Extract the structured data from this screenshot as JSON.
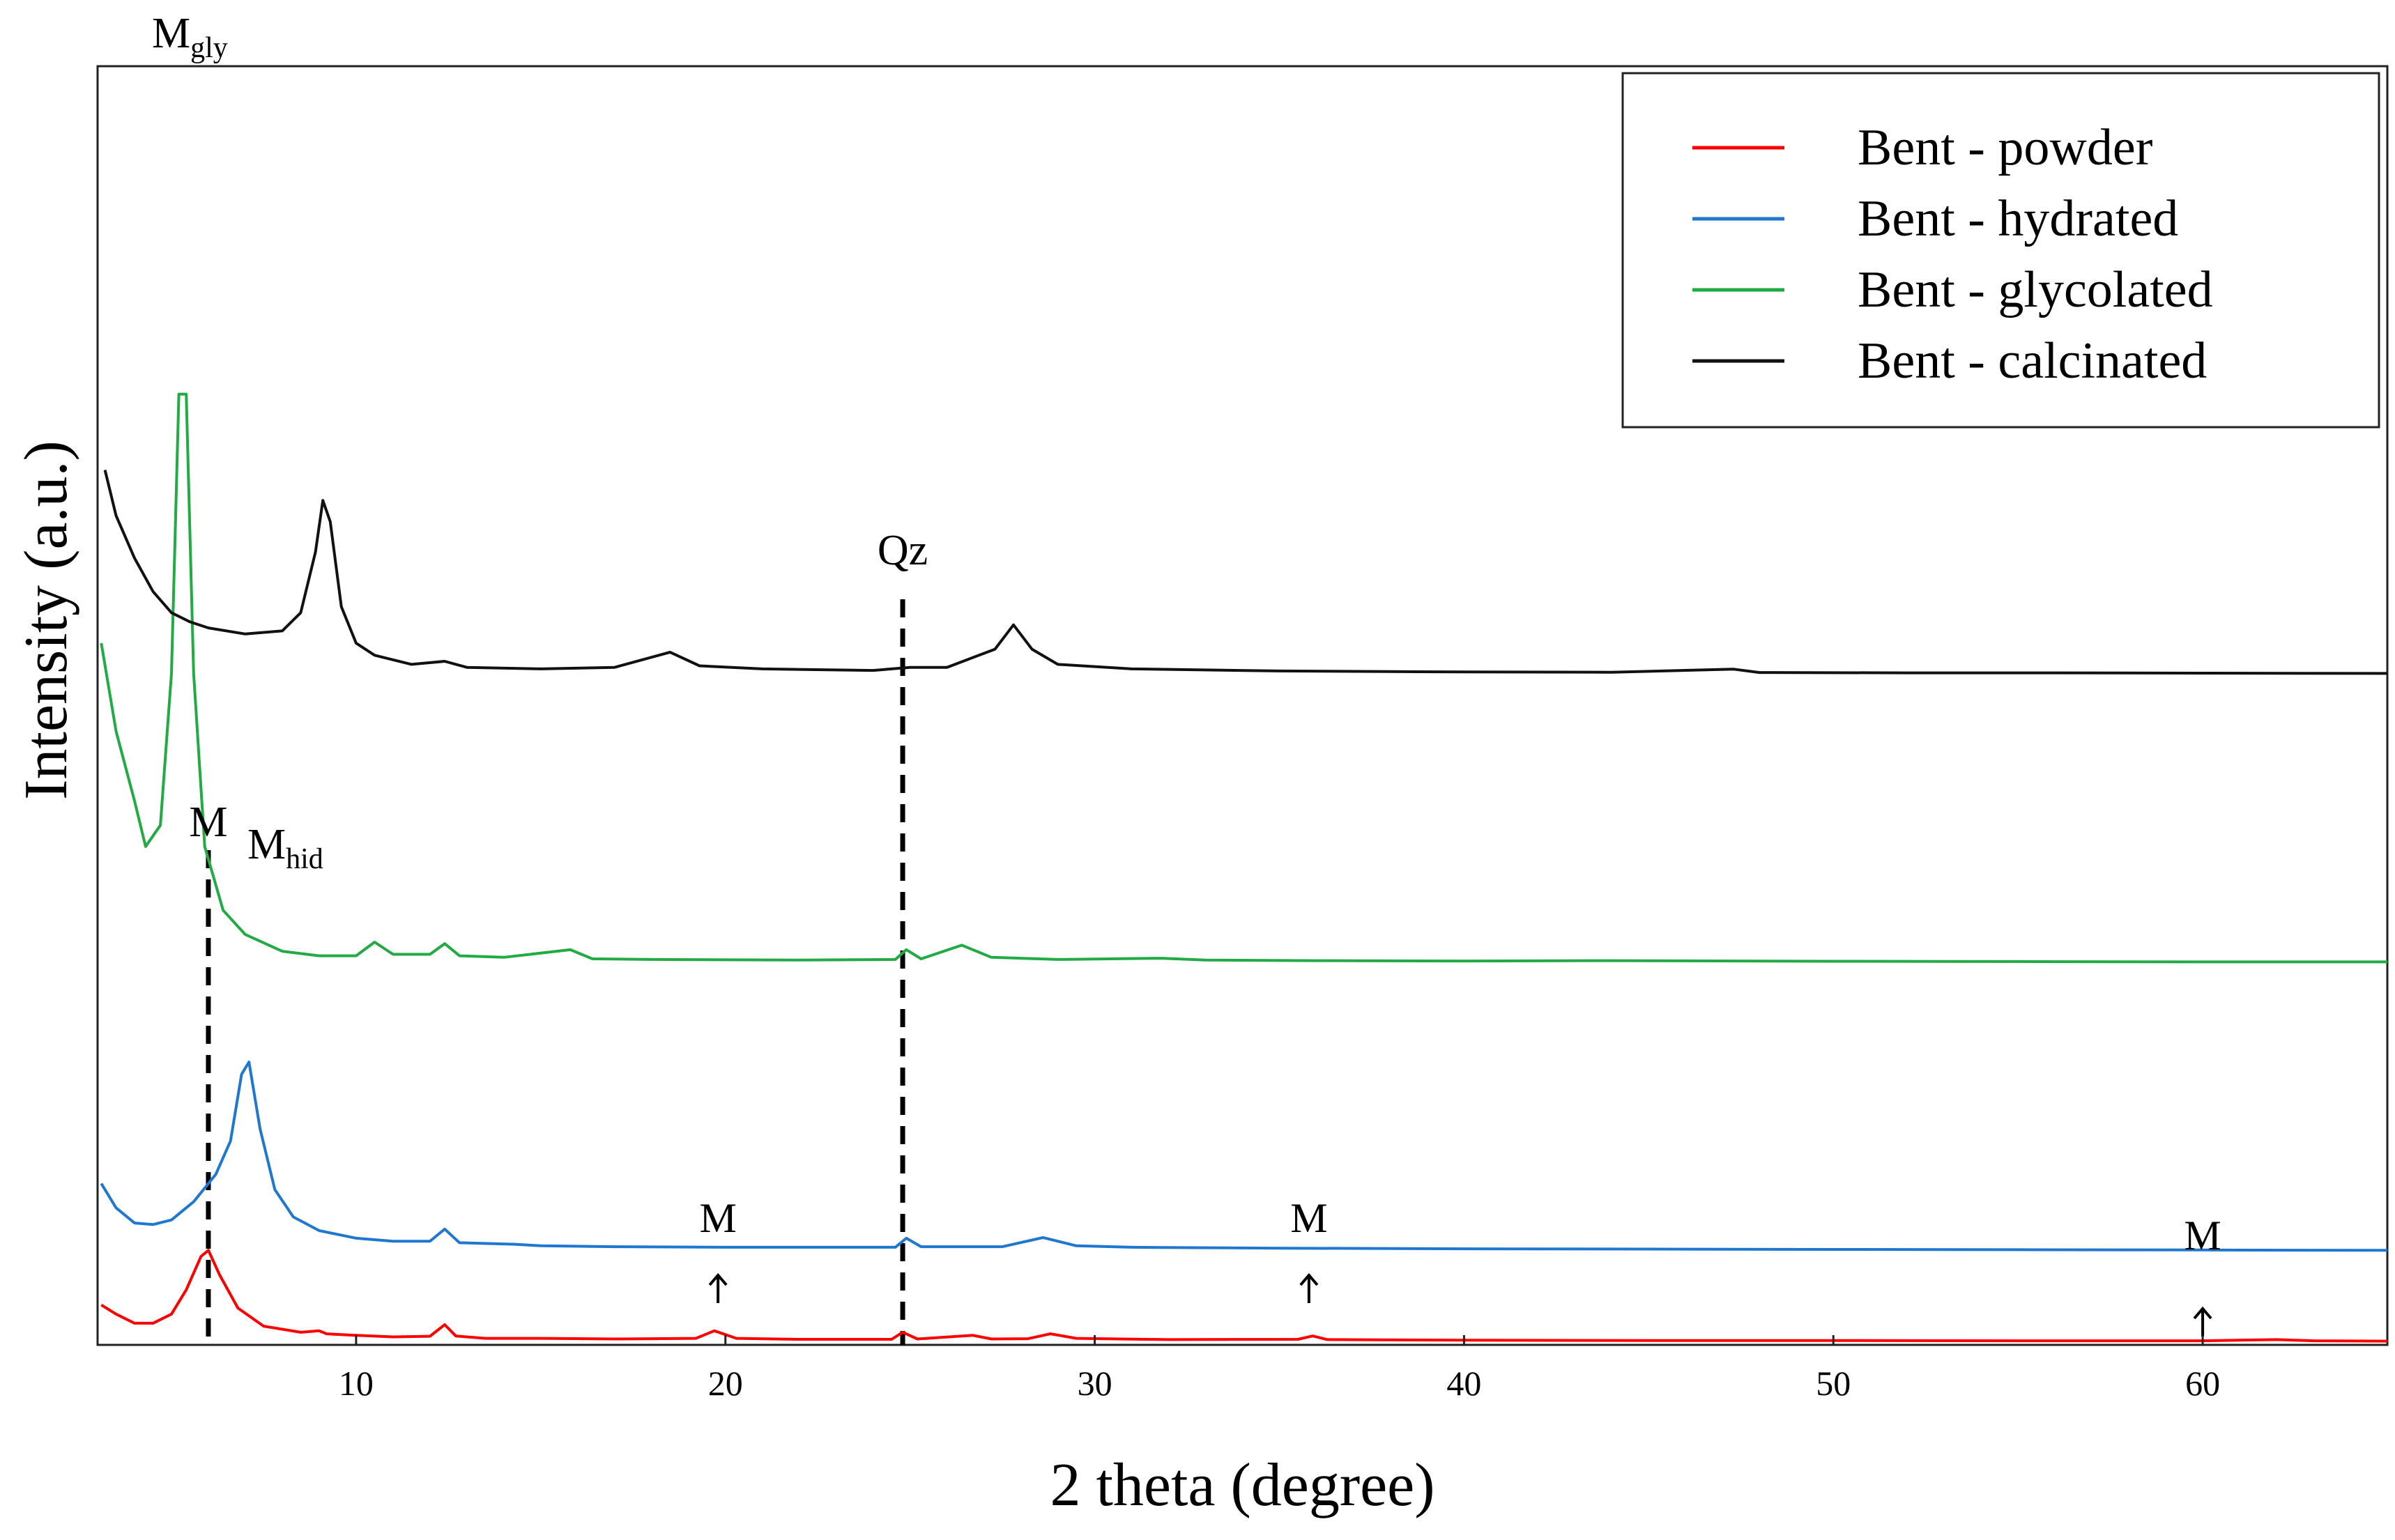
{
  "chart_data": {
    "type": "line",
    "title": "",
    "xlabel": "2 theta (degree)",
    "ylabel": "Intensity (a.u.)",
    "xlim": [
      3,
      65
    ],
    "xticks": [
      10,
      20,
      30,
      40,
      50,
      60
    ],
    "xtick_labels": [
      "10",
      "20",
      "30",
      "40",
      "50",
      "60"
    ],
    "y_ticks_shown": false,
    "grid": false,
    "legend_position": "top-right",
    "series": [
      {
        "name": "Bent - powder",
        "color": "#ff0000",
        "offset": 0,
        "points": [
          [
            3.1,
            0.12
          ],
          [
            3.5,
            0.09
          ],
          [
            4.0,
            0.06
          ],
          [
            4.5,
            0.06
          ],
          [
            5.0,
            0.09
          ],
          [
            5.4,
            0.17
          ],
          [
            5.8,
            0.28
          ],
          [
            6.0,
            0.3
          ],
          [
            6.3,
            0.22
          ],
          [
            6.8,
            0.11
          ],
          [
            7.5,
            0.05
          ],
          [
            8.5,
            0.03
          ],
          [
            9.0,
            0.035
          ],
          [
            9.2,
            0.025
          ],
          [
            10,
            0.02
          ],
          [
            11,
            0.015
          ],
          [
            12.0,
            0.017
          ],
          [
            12.4,
            0.055
          ],
          [
            12.7,
            0.018
          ],
          [
            13.5,
            0.01
          ],
          [
            15,
            0.01
          ],
          [
            17,
            0.008
          ],
          [
            19.2,
            0.01
          ],
          [
            19.7,
            0.035
          ],
          [
            20.3,
            0.01
          ],
          [
            22,
            0.007
          ],
          [
            24.5,
            0.007
          ],
          [
            24.8,
            0.03
          ],
          [
            25.2,
            0.008
          ],
          [
            26.7,
            0.02
          ],
          [
            27.2,
            0.008
          ],
          [
            28.2,
            0.009
          ],
          [
            28.8,
            0.025
          ],
          [
            29.5,
            0.01
          ],
          [
            32,
            0.006
          ],
          [
            35.5,
            0.007
          ],
          [
            35.9,
            0.018
          ],
          [
            36.3,
            0.006
          ],
          [
            40,
            0.004
          ],
          [
            45,
            0.003
          ],
          [
            50,
            0.003
          ],
          [
            55,
            0.002
          ],
          [
            60,
            0.002
          ],
          [
            62,
            0.006
          ],
          [
            63,
            0.002
          ],
          [
            65,
            0.001
          ]
        ]
      },
      {
        "name": "Bent - hydrated",
        "color": "#1f77d0",
        "offset": 0.3,
        "points": [
          [
            3.1,
            0.22
          ],
          [
            3.5,
            0.14
          ],
          [
            4.0,
            0.09
          ],
          [
            4.5,
            0.085
          ],
          [
            5.0,
            0.1
          ],
          [
            5.6,
            0.16
          ],
          [
            6.2,
            0.25
          ],
          [
            6.6,
            0.36
          ],
          [
            6.9,
            0.58
          ],
          [
            7.1,
            0.62
          ],
          [
            7.4,
            0.4
          ],
          [
            7.8,
            0.2
          ],
          [
            8.3,
            0.11
          ],
          [
            9,
            0.065
          ],
          [
            10,
            0.04
          ],
          [
            11,
            0.03
          ],
          [
            12.0,
            0.03
          ],
          [
            12.4,
            0.07
          ],
          [
            12.8,
            0.025
          ],
          [
            14.3,
            0.02
          ],
          [
            15,
            0.015
          ],
          [
            17,
            0.012
          ],
          [
            20,
            0.01
          ],
          [
            24.6,
            0.01
          ],
          [
            24.9,
            0.04
          ],
          [
            25.3,
            0.012
          ],
          [
            27.5,
            0.012
          ],
          [
            28.6,
            0.042
          ],
          [
            29.5,
            0.015
          ],
          [
            31,
            0.01
          ],
          [
            35,
            0.007
          ],
          [
            40,
            0.005
          ],
          [
            45,
            0.004
          ],
          [
            50,
            0.003
          ],
          [
            55,
            0.002
          ],
          [
            60,
            0.001
          ],
          [
            65,
            0.0
          ]
        ]
      },
      {
        "name": "Bent - glycolated",
        "color": "#22aa44",
        "offset": 1.25,
        "points": [
          [
            3.1,
            1.05
          ],
          [
            3.5,
            0.76
          ],
          [
            4.0,
            0.53
          ],
          [
            4.3,
            0.38
          ],
          [
            4.7,
            0.45
          ],
          [
            5.0,
            0.95
          ],
          [
            5.2,
            1.87
          ],
          [
            5.4,
            1.87
          ],
          [
            5.6,
            0.95
          ],
          [
            5.9,
            0.38
          ],
          [
            6.4,
            0.17
          ],
          [
            7.0,
            0.09
          ],
          [
            8,
            0.035
          ],
          [
            9,
            0.02
          ],
          [
            10,
            0.02
          ],
          [
            10.5,
            0.065
          ],
          [
            11,
            0.025
          ],
          [
            12.0,
            0.025
          ],
          [
            12.4,
            0.06
          ],
          [
            12.8,
            0.02
          ],
          [
            14,
            0.015
          ],
          [
            15.8,
            0.04
          ],
          [
            16.4,
            0.01
          ],
          [
            18,
            0.008
          ],
          [
            22,
            0.006
          ],
          [
            24.6,
            0.008
          ],
          [
            24.9,
            0.04
          ],
          [
            25.3,
            0.01
          ],
          [
            26.4,
            0.055
          ],
          [
            27.2,
            0.015
          ],
          [
            29,
            0.008
          ],
          [
            31.8,
            0.012
          ],
          [
            33,
            0.006
          ],
          [
            36,
            0.004
          ],
          [
            40,
            0.003
          ],
          [
            44,
            0.004
          ],
          [
            50,
            0.002
          ],
          [
            55,
            0.001
          ],
          [
            60,
            0.0
          ],
          [
            65,
            0.0
          ]
        ]
      },
      {
        "name": "Bent - calcinated",
        "color": "#111111",
        "offset": 2.2,
        "points": [
          [
            3.2,
            0.67
          ],
          [
            3.5,
            0.52
          ],
          [
            4.0,
            0.38
          ],
          [
            4.5,
            0.27
          ],
          [
            5.0,
            0.2
          ],
          [
            5.5,
            0.17
          ],
          [
            6.0,
            0.15
          ],
          [
            7.0,
            0.13
          ],
          [
            8.0,
            0.14
          ],
          [
            8.5,
            0.2
          ],
          [
            8.9,
            0.4
          ],
          [
            9.1,
            0.57
          ],
          [
            9.3,
            0.5
          ],
          [
            9.6,
            0.22
          ],
          [
            10,
            0.1
          ],
          [
            10.5,
            0.06
          ],
          [
            11.5,
            0.03
          ],
          [
            12.4,
            0.04
          ],
          [
            13,
            0.02
          ],
          [
            15,
            0.015
          ],
          [
            17,
            0.02
          ],
          [
            18.5,
            0.07
          ],
          [
            19.3,
            0.025
          ],
          [
            21,
            0.015
          ],
          [
            24,
            0.01
          ],
          [
            25,
            0.02
          ],
          [
            26,
            0.02
          ],
          [
            27.3,
            0.08
          ],
          [
            27.8,
            0.16
          ],
          [
            28.3,
            0.08
          ],
          [
            29,
            0.03
          ],
          [
            31,
            0.015
          ],
          [
            35,
            0.008
          ],
          [
            38,
            0.006
          ],
          [
            40,
            0.005
          ],
          [
            44,
            0.004
          ],
          [
            47.3,
            0.014
          ],
          [
            48,
            0.003
          ],
          [
            52,
            0.002
          ],
          [
            56,
            0.002
          ],
          [
            60,
            0.001
          ],
          [
            65,
            0.0
          ]
        ]
      }
    ],
    "annotations": {
      "vlines": [
        {
          "x": 6.0,
          "label": "M"
        },
        {
          "x": 24.8,
          "label": "Qz"
        }
      ],
      "peak_labels": [
        {
          "main": "M",
          "sub": "gly"
        },
        {
          "main": "M",
          "sub": "hid"
        }
      ],
      "arrows": [
        {
          "x": 19.8,
          "label": "M"
        },
        {
          "x": 35.8,
          "label": "M"
        },
        {
          "x": 60.0,
          "label": "M"
        }
      ]
    }
  }
}
